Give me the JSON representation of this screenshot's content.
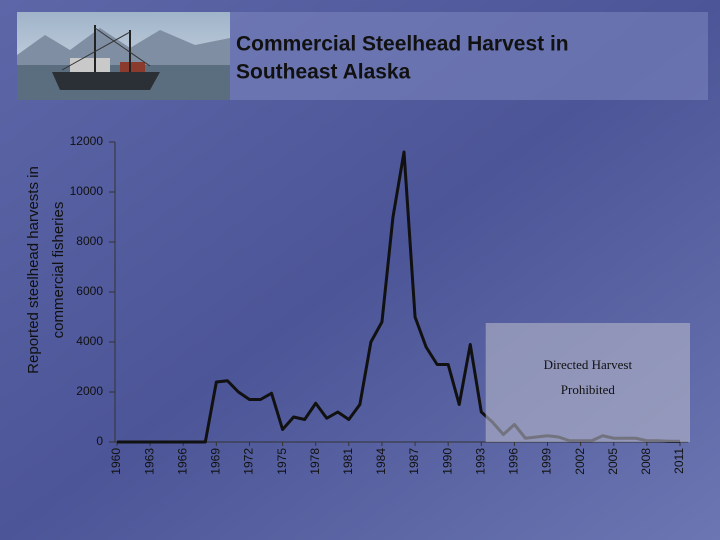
{
  "chart_data": {
    "type": "line",
    "title": [
      "Commercial Steelhead Harvest in",
      "Southeast Alaska"
    ],
    "ylabel": [
      "Reported steelhead harvests in",
      "commercial fisheries"
    ],
    "x": [
      1960,
      1961,
      1962,
      1963,
      1964,
      1965,
      1966,
      1967,
      1968,
      1969,
      1970,
      1971,
      1972,
      1973,
      1974,
      1975,
      1976,
      1977,
      1978,
      1979,
      1980,
      1981,
      1982,
      1983,
      1984,
      1985,
      1986,
      1987,
      1988,
      1989,
      1990,
      1991,
      1992,
      1993,
      1994,
      1995,
      1996,
      1997,
      1998,
      1999,
      2000,
      2001,
      2002,
      2003,
      2004,
      2005,
      2006,
      2007,
      2008,
      2009,
      2010,
      2011
    ],
    "values": [
      0,
      0,
      0,
      0,
      0,
      0,
      0,
      0,
      0,
      2400,
      2450,
      2000,
      1700,
      1700,
      1950,
      500,
      1000,
      900,
      1550,
      950,
      1200,
      900,
      1500,
      4000,
      4800,
      9000,
      11600,
      5000,
      3800,
      3100,
      3100,
      1500,
      3900,
      1200,
      800,
      300,
      700,
      150,
      200,
      250,
      200,
      50,
      50,
      50,
      250,
      150,
      150,
      150,
      50,
      50,
      30,
      30
    ],
    "color": "#111111",
    "xlim": [
      1960,
      2011
    ],
    "xticks": [
      1960,
      1963,
      1966,
      1969,
      1972,
      1975,
      1978,
      1981,
      1984,
      1987,
      1990,
      1993,
      1996,
      1999,
      2002,
      2005,
      2008,
      2011
    ],
    "ylim": [
      0,
      12000
    ],
    "yticks": [
      0,
      2000,
      4000,
      6000,
      8000,
      10000,
      12000
    ],
    "shaded_from": 1993.4,
    "annotation": [
      "Directed Harvest",
      "Prohibited"
    ]
  }
}
